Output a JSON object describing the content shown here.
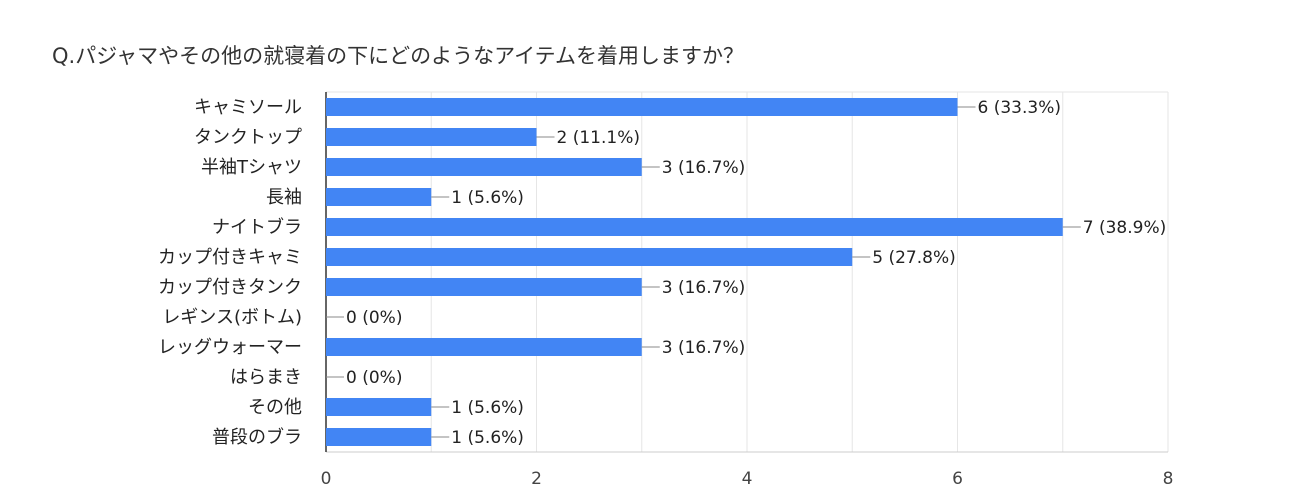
{
  "chart_data": {
    "type": "bar",
    "orientation": "horizontal",
    "title": "Q.パジャマやその他の就寝着の下にどのようなアイテムを着用しますか？",
    "categories": [
      "キャミソール",
      "タンクトップ",
      "半袖Tシャツ",
      "長袖",
      "ナイトブラ",
      "カップ付きキャミ",
      "カップ付きタンク",
      "レギンス(ボトム)",
      "レッグウォーマー",
      "はらまき",
      "その他",
      "普段のブラ"
    ],
    "values": [
      6,
      2,
      3,
      1,
      7,
      5,
      3,
      0,
      3,
      0,
      1,
      1
    ],
    "data_labels": [
      "6 (33.3%)",
      "2 (11.1%)",
      "3 (16.7%)",
      "1 (5.6%)",
      "7 (38.9%)",
      "5 (27.8%)",
      "3 (16.7%)",
      "0 (0%)",
      "3 (16.7%)",
      "0 (0%)",
      "1 (5.6%)",
      "1 (5.6%)"
    ],
    "xlim": [
      0,
      8
    ],
    "x_ticks": [
      "0",
      "2",
      "4",
      "6",
      "8"
    ],
    "grid": true,
    "bar_color": "#4285F4"
  }
}
